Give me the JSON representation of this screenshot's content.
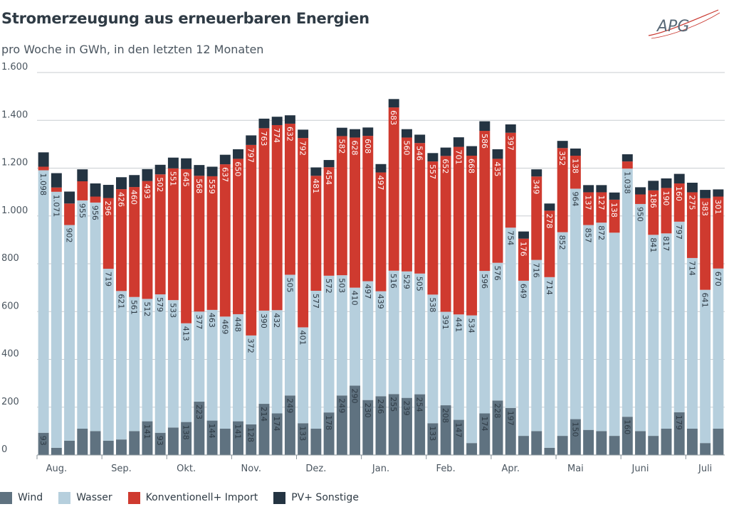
{
  "header": {
    "title": "Stromerzeugung aus erneuerbaren Energien",
    "subtitle": "pro Woche in GWh, in den letzten 12 Monaten"
  },
  "logo": {
    "text": "APG"
  },
  "colors": {
    "wind": "#5f7280",
    "wasser": "#b6cfdd",
    "konv": "#cf3a2f",
    "pv": "#243442"
  },
  "chart_data": {
    "type": "bar",
    "stacked": true,
    "ylim": [
      0,
      1600
    ],
    "yticks": [
      0,
      200,
      400,
      600,
      800,
      1000,
      1200,
      1400,
      1600
    ],
    "ytick_labels": [
      "0",
      "200",
      "400",
      "600",
      "800",
      "1.000",
      "1.200",
      "1.400",
      "1.600"
    ],
    "month_labels": [
      {
        "label": "Aug.",
        "week": 1
      },
      {
        "label": "Sep.",
        "week": 6
      },
      {
        "label": "Okt.",
        "week": 11
      },
      {
        "label": "Nov.",
        "week": 16
      },
      {
        "label": "Dez.",
        "week": 21
      },
      {
        "label": "Jan.",
        "week": 26
      },
      {
        "label": "Feb.",
        "week": 31
      },
      {
        "label": "Apr.",
        "week": 36
      },
      {
        "label": "Mai",
        "week": 41
      },
      {
        "label": "Juni",
        "week": 46
      },
      {
        "label": "Juli",
        "week": 51
      }
    ],
    "series": [
      {
        "name": "Wind",
        "color": "#5f7280",
        "values": [
          93,
          30,
          60,
          110,
          100,
          60,
          65,
          100,
          141,
          93,
          115,
          138,
          223,
          144,
          110,
          141,
          128,
          214,
          174,
          249,
          133,
          110,
          178,
          249,
          290,
          230,
          246,
          255,
          239,
          254,
          133,
          208,
          147,
          50,
          174,
          228,
          197,
          80,
          100,
          30,
          80,
          150,
          105,
          100,
          80,
          160,
          100,
          80,
          110,
          179,
          110,
          50,
          110
        ]
      },
      {
        "name": "Wasser",
        "color": "#b6cfdd",
        "values": [
          1098,
          1071,
          902,
          955,
          956,
          719,
          621,
          561,
          512,
          579,
          533,
          413,
          377,
          463,
          469,
          448,
          372,
          390,
          432,
          505,
          401,
          577,
          572,
          503,
          410,
          497,
          439,
          516,
          529,
          505,
          538,
          391,
          441,
          534,
          596,
          576,
          754,
          649,
          716,
          714,
          852,
          964,
          857,
          872,
          850,
          1038,
          950,
          841,
          817,
          797,
          714,
          641,
          670
        ]
      },
      {
        "name": "Konventionell+ Import",
        "color": "#cf3a2f",
        "values": [
          15,
          18,
          90,
          80,
          25,
          296,
          426,
          460,
          493,
          502,
          551,
          645,
          568,
          559,
          637,
          650,
          797,
          763,
          774,
          632,
          792,
          481,
          454,
          582,
          628,
          608,
          497,
          683,
          560,
          546,
          557,
          652,
          701,
          668,
          586,
          435,
          397,
          176,
          349,
          278,
          352,
          138,
          137,
          127,
          138,
          30,
          40,
          186,
          190,
          160,
          275,
          383,
          301
        ]
      },
      {
        "name": "PV+ Sonstige",
        "color": "#243442",
        "values": [
          60,
          60,
          50,
          50,
          55,
          55,
          50,
          50,
          50,
          40,
          45,
          45,
          45,
          40,
          40,
          40,
          40,
          40,
          35,
          35,
          35,
          35,
          30,
          35,
          35,
          35,
          35,
          35,
          35,
          35,
          35,
          35,
          40,
          40,
          40,
          40,
          35,
          30,
          30,
          30,
          30,
          30,
          30,
          30,
          30,
          30,
          30,
          40,
          40,
          40,
          40,
          35,
          30
        ]
      }
    ],
    "bar_labels": {
      "wind": [
        "93",
        "",
        "",
        "",
        "",
        "",
        "",
        "",
        "141",
        "93",
        "",
        "138",
        "223",
        "144",
        "",
        "141",
        "128",
        "214",
        "174",
        "249",
        "133",
        "",
        "178",
        "249",
        "290",
        "230",
        "246",
        "255",
        "239",
        "254",
        "133",
        "208",
        "147",
        "",
        "174",
        "228",
        "197",
        "",
        "",
        "",
        "",
        "150",
        "",
        "",
        "",
        "160",
        "",
        "",
        "",
        "179",
        "",
        "",
        ""
      ],
      "wasser": [
        "1.098",
        "1.071",
        "902",
        "955",
        "956",
        "719",
        "621",
        "561",
        "512",
        "579",
        "533",
        "413",
        "377",
        "463",
        "469",
        "448",
        "372",
        "390",
        "432",
        "505",
        "401",
        "577",
        "572",
        "503",
        "410",
        "497",
        "439",
        "516",
        "529",
        "505",
        "538",
        "391",
        "441",
        "534",
        "596",
        "576",
        "754",
        "649",
        "716",
        "714",
        "852",
        "964",
        "857",
        "872",
        "",
        "1.038",
        "950",
        "841",
        "817",
        "797",
        "714",
        "641",
        "670"
      ],
      "konv": [
        "",
        "",
        "",
        "",
        "",
        "296",
        "426",
        "460",
        "493",
        "502",
        "551",
        "645",
        "568",
        "559",
        "637",
        "650",
        "797",
        "763",
        "774",
        "632",
        "792",
        "481",
        "454",
        "582",
        "628",
        "608",
        "497",
        "683",
        "560",
        "546",
        "557",
        "652",
        "701",
        "668",
        "586",
        "435",
        "397",
        "176",
        "349",
        "278",
        "352",
        "138",
        "137",
        "127",
        "138",
        "",
        "",
        "186",
        "190",
        "160",
        "275",
        "383",
        "301"
      ]
    }
  },
  "legend": [
    {
      "label": "Wind",
      "color": "#5f7280"
    },
    {
      "label": "Wasser",
      "color": "#b6cfdd"
    },
    {
      "label": "Konventionell+ Import",
      "color": "#cf3a2f"
    },
    {
      "label": "PV+ Sonstige",
      "color": "#243442"
    }
  ]
}
